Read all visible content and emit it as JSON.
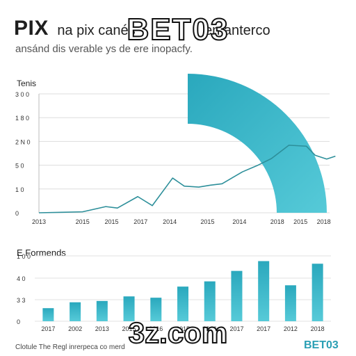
{
  "header": {
    "title": "PIX",
    "title_rest": "na pix canés",
    "title_tail": "en anterco",
    "subtitle": "ansánd dis verable ys de ere inopacfy."
  },
  "watermark": {
    "top": "BET03",
    "bottom": "3z.com"
  },
  "footer": {
    "note": "Clotule The Regl inrerpeca co merd",
    "brand": "BET03"
  },
  "colors": {
    "accent": "#2aa8bd",
    "accent_light": "#56cad8",
    "line": "#2d8f9a"
  },
  "chart_data": [
    {
      "type": "line",
      "title": "Tenis",
      "y_tick_labels": [
        "0",
        "1 0",
        "5 0",
        "2 N 0",
        "1 8 0",
        "3 0 0"
      ],
      "y_tick_values": [
        0,
        50,
        100,
        150,
        200,
        250
      ],
      "ylim": [
        0,
        250
      ],
      "x_tick_labels": [
        "2013",
        "2015",
        "2015",
        "2017",
        "2014",
        "2015",
        "2014",
        "2018",
        "2015",
        "2018"
      ],
      "x_tick_positions": [
        0,
        1.5,
        2.5,
        3.5,
        4.5,
        5.8,
        6.9,
        8.2,
        9.0,
        9.8
      ],
      "xlim": [
        0,
        10
      ],
      "series": [
        {
          "x": [
            0,
            0.8,
            1.5,
            2.3,
            2.7,
            3.4,
            3.9,
            4.6,
            5.0,
            5.5,
            5.9,
            6.3,
            7.0,
            7.5,
            8.0,
            8.6,
            9.2,
            9.5,
            9.9,
            10.2
          ],
          "values": [
            0,
            1,
            2,
            13,
            10,
            34,
            15,
            73,
            56,
            54,
            58,
            61,
            86,
            99,
            114,
            142,
            140,
            121,
            113,
            119
          ]
        }
      ],
      "gauge": {
        "type": "arc",
        "fill_fraction": 0.25
      }
    },
    {
      "type": "bar",
      "title": "E Formends",
      "y_tick_labels": [
        "0",
        "3 3",
        "4 0",
        "1 0 0"
      ],
      "y_tick_values": [
        0,
        33,
        66,
        100
      ],
      "ylim": [
        0,
        100
      ],
      "categories": [
        "2017",
        "2002",
        "2013",
        "2015",
        "2016",
        "2015",
        "2016",
        "2017",
        "2017",
        "2012",
        "2018"
      ],
      "values": [
        20,
        29,
        31,
        38,
        36,
        53,
        61,
        77,
        92,
        55,
        88
      ]
    }
  ]
}
